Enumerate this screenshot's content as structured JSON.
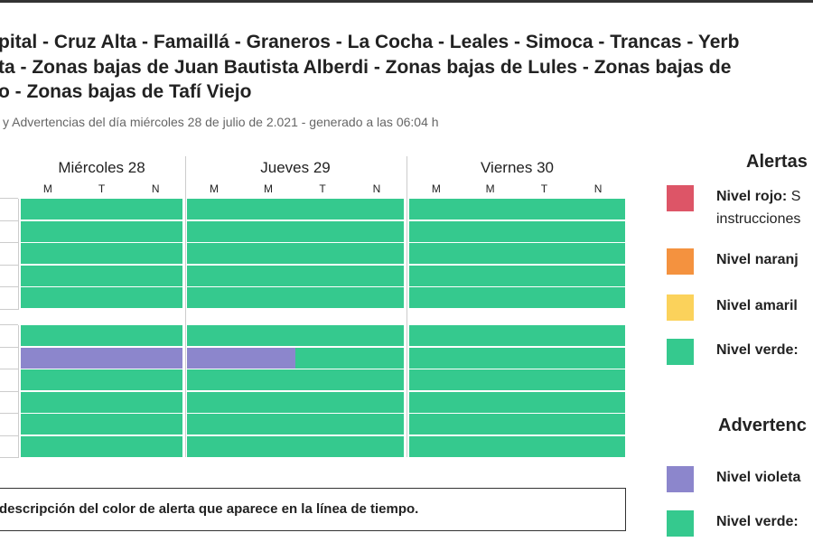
{
  "header": {
    "title_lines": [
      "pital - Cruz Alta - Famaillá - Graneros - La Cocha - Leales - Simoca - Trancas - Yerb",
      "ta - Zonas bajas de Juan Bautista Alberdi - Zonas bajas de Lules - Zonas bajas de",
      "o - Zonas bajas de Tafí Viejo"
    ],
    "subtitle": "y Advertencias del día miércoles 28 de julio de 2.021 - generado a las 06:04 h"
  },
  "timeline": {
    "days": [
      {
        "label": "Miércoles 28",
        "slots": [
          "M",
          "T",
          "N"
        ]
      },
      {
        "label": "Jueves 29",
        "slots": [
          "M",
          "M",
          "T",
          "N"
        ]
      },
      {
        "label": "Viernes 30",
        "slots": [
          "M",
          "M",
          "T",
          "N"
        ]
      }
    ],
    "groups": [
      [
        [
          "#35c98e",
          "#35c98e",
          "#35c98e",
          "#35c98e",
          "#35c98e",
          "#35c98e",
          "#35c98e",
          "#35c98e",
          "#35c98e",
          "#35c98e",
          "#35c98e"
        ],
        [
          "#35c98e",
          "#35c98e",
          "#35c98e",
          "#35c98e",
          "#35c98e",
          "#35c98e",
          "#35c98e",
          "#35c98e",
          "#35c98e",
          "#35c98e",
          "#35c98e"
        ],
        [
          "#35c98e",
          "#35c98e",
          "#35c98e",
          "#35c98e",
          "#35c98e",
          "#35c98e",
          "#35c98e",
          "#35c98e",
          "#35c98e",
          "#35c98e",
          "#35c98e"
        ],
        [
          "#35c98e",
          "#35c98e",
          "#35c98e",
          "#35c98e",
          "#35c98e",
          "#35c98e",
          "#35c98e",
          "#35c98e",
          "#35c98e",
          "#35c98e",
          "#35c98e"
        ],
        [
          "#35c98e",
          "#35c98e",
          "#35c98e",
          "#35c98e",
          "#35c98e",
          "#35c98e",
          "#35c98e",
          "#35c98e",
          "#35c98e",
          "#35c98e",
          "#35c98e"
        ]
      ],
      [
        [
          "#35c98e",
          "#35c98e",
          "#35c98e",
          "#35c98e",
          "#35c98e",
          "#35c98e",
          "#35c98e",
          "#35c98e",
          "#35c98e",
          "#35c98e",
          "#35c98e"
        ],
        [
          "#8c86cc",
          "#8c86cc",
          "#8c86cc",
          "#8c86cc",
          "#8c86cc",
          "#35c98e",
          "#35c98e",
          "#35c98e",
          "#35c98e",
          "#35c98e",
          "#35c98e"
        ],
        [
          "#35c98e",
          "#35c98e",
          "#35c98e",
          "#35c98e",
          "#35c98e",
          "#35c98e",
          "#35c98e",
          "#35c98e",
          "#35c98e",
          "#35c98e",
          "#35c98e"
        ],
        [
          "#35c98e",
          "#35c98e",
          "#35c98e",
          "#35c98e",
          "#35c98e",
          "#35c98e",
          "#35c98e",
          "#35c98e",
          "#35c98e",
          "#35c98e",
          "#35c98e"
        ],
        [
          "#35c98e",
          "#35c98e",
          "#35c98e",
          "#35c98e",
          "#35c98e",
          "#35c98e",
          "#35c98e",
          "#35c98e",
          "#35c98e",
          "#35c98e",
          "#35c98e"
        ],
        [
          "#35c98e",
          "#35c98e",
          "#35c98e",
          "#35c98e",
          "#35c98e",
          "#35c98e",
          "#35c98e",
          "#35c98e",
          "#35c98e",
          "#35c98e",
          "#35c98e"
        ]
      ]
    ],
    "note": "descripción del color de alerta que aparece en la línea de tiempo."
  },
  "legend": {
    "alertas": {
      "title": "Alertas",
      "items": [
        {
          "color": "#dd5567",
          "label": "Nivel rojo:",
          "text": "S",
          "line2": "instrucciones"
        },
        {
          "color": "#f4923f",
          "label": "Nivel naranj"
        },
        {
          "color": "#fbd25b",
          "label": "Nivel amaril"
        },
        {
          "color": "#35c98e",
          "label": "Nivel verde:"
        }
      ]
    },
    "advertencias": {
      "title": "Advertenc",
      "items": [
        {
          "color": "#8c86cc",
          "label": "Nivel violeta"
        },
        {
          "color": "#35c98e",
          "label": "Nivel verde:"
        }
      ]
    }
  }
}
